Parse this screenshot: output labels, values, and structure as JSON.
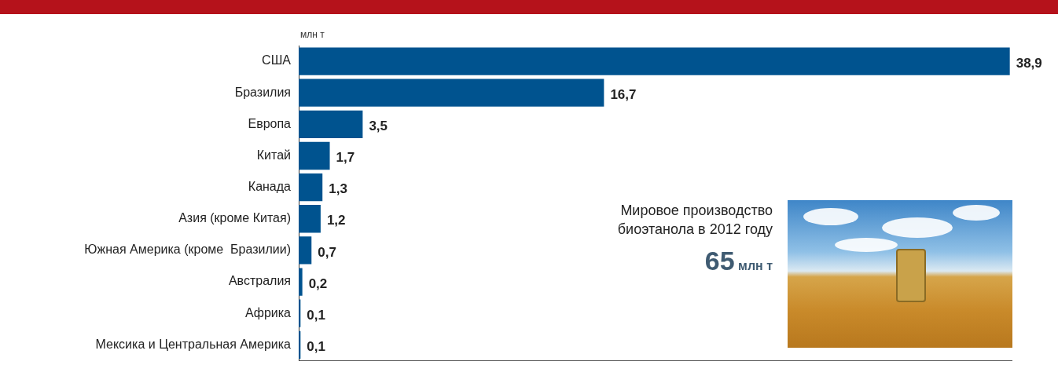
{
  "chart_data": {
    "type": "bar",
    "orientation": "horizontal",
    "xlabel": "млн т",
    "categories": [
      "США",
      "Бразилия",
      "Европа",
      "Китай",
      "Канада",
      "Азия (кроме Китая)",
      "Южная Америка (кроме  Бразилии)",
      "Австралия",
      "Африка",
      "Мексика и Центральная Америка"
    ],
    "values": [
      38.9,
      16.7,
      3.5,
      1.7,
      1.3,
      1.2,
      0.7,
      0.2,
      0.1,
      0.1
    ],
    "value_labels": [
      "38,9",
      "16,7",
      "3,5",
      "1,7",
      "1,3",
      "1,2",
      "0,7",
      "0,2",
      "0,1",
      "0,1"
    ],
    "data_labels": true,
    "color": "#00538f",
    "xlim": [
      0,
      39
    ],
    "grid": false,
    "tick_labels": "y",
    "annotations": [
      {
        "label": "Мировое производство биоэтанола в 2012 году",
        "value": 65,
        "unit": "млн т"
      }
    ]
  }
}
